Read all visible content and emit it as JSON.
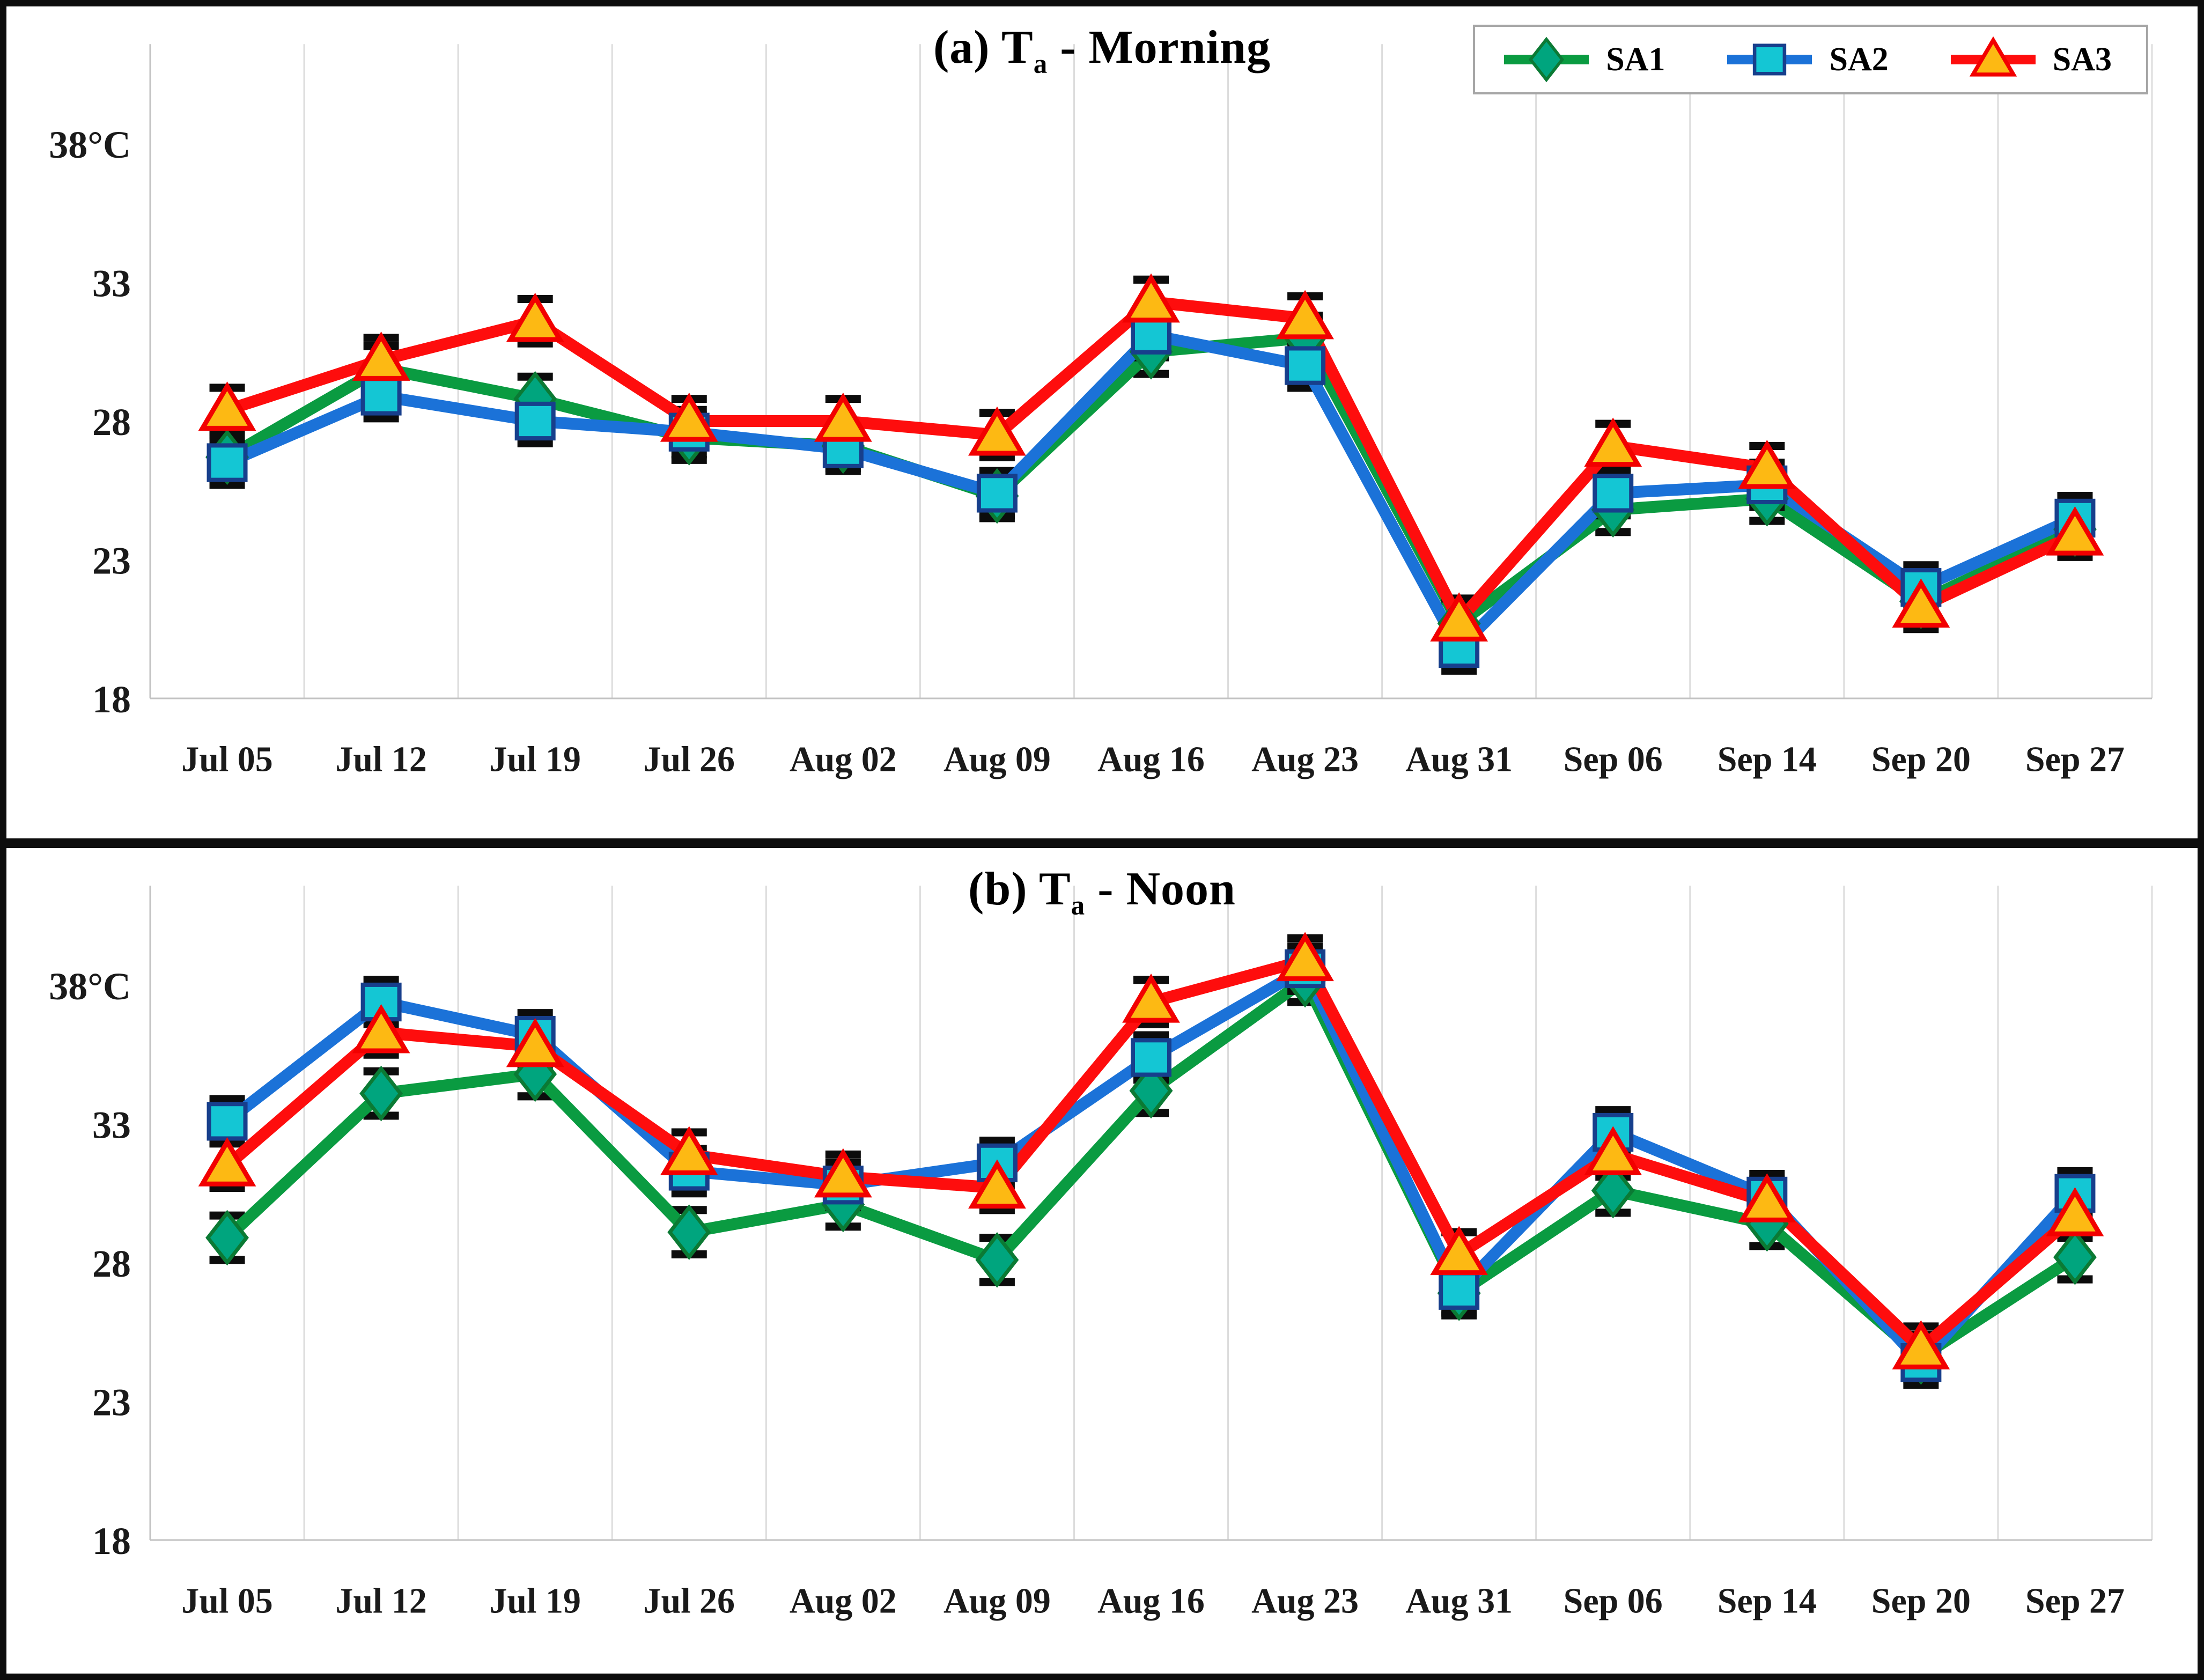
{
  "figure": {
    "panels": [
      {
        "id": "morning",
        "title_prefix": "(a)  T",
        "title_sub": "a",
        "title_rest": " - Morning"
      },
      {
        "id": "noon",
        "title_prefix": "(b)  T",
        "title_sub": "a",
        "title_rest": " - Noon"
      }
    ]
  },
  "legend": {
    "position": "top-right-of-panel-a",
    "items": [
      {
        "label": "SA1",
        "marker": "diamond"
      },
      {
        "label": "SA2",
        "marker": "square"
      },
      {
        "label": "SA3",
        "marker": "triangle"
      }
    ]
  },
  "series_styles": {
    "SA1": {
      "line_color": "#0a9b41",
      "marker": "diamond",
      "marker_fill": "#00a57e",
      "marker_stroke": "#0b7a34"
    },
    "SA2": {
      "line_color": "#1b72d8",
      "marker": "square",
      "marker_fill": "#14c6d4",
      "marker_stroke": "#173f8c"
    },
    "SA3": {
      "line_color": "#fe0d0d",
      "marker": "triangle",
      "marker_fill": "#fdb913",
      "marker_stroke": "#f20000"
    }
  },
  "chart_data": [
    {
      "type": "line",
      "panel": "morning",
      "title": "(a) Ta - Morning",
      "categories": [
        "Jul 05",
        "Jul 12",
        "Jul 19",
        "Jul 26",
        "Aug 02",
        "Aug 09",
        "Aug 16",
        "Aug 23",
        "Aug 31",
        "Sep 06",
        "Sep 14",
        "Sep 20",
        "Sep 27"
      ],
      "series": [
        {
          "name": "SA1",
          "values": [
            26.7,
            29.9,
            28.8,
            27.4,
            27.1,
            25.3,
            30.5,
            31.0,
            20.7,
            24.8,
            25.2,
            21.5,
            24.1
          ]
        },
        {
          "name": "SA2",
          "values": [
            26.5,
            28.9,
            28.0,
            27.6,
            27.0,
            25.4,
            31.1,
            30.0,
            19.8,
            25.4,
            25.7,
            22.0,
            24.5
          ]
        },
        {
          "name": "SA3",
          "values": [
            28.4,
            30.2,
            31.6,
            28.0,
            28.0,
            27.5,
            32.3,
            31.7,
            20.8,
            27.1,
            26.3,
            21.3,
            23.9
          ]
        }
      ],
      "error_bar_half": 0.8,
      "ylabel": "°C",
      "yticks": [
        38,
        33,
        28,
        23,
        18
      ],
      "ytick_labels": [
        "38°C",
        "33",
        "28",
        "23",
        "18"
      ],
      "ylim": [
        18,
        40.5
      ],
      "grid": "vertical-only",
      "legend_position": "top-right"
    },
    {
      "type": "line",
      "panel": "noon",
      "title": "(b) Ta - Noon",
      "categories": [
        "Jul 05",
        "Jul 12",
        "Jul 19",
        "Jul 26",
        "Aug 02",
        "Aug 09",
        "Aug 16",
        "Aug 23",
        "Aug 31",
        "Sep 06",
        "Sep 14",
        "Sep 20",
        "Sep 27"
      ],
      "series": [
        {
          "name": "SA1",
          "values": [
            28.9,
            34.1,
            34.8,
            29.1,
            30.1,
            28.1,
            34.2,
            38.2,
            26.9,
            30.6,
            29.4,
            24.6,
            28.2
          ]
        },
        {
          "name": "SA2",
          "values": [
            33.1,
            37.4,
            36.2,
            31.3,
            30.8,
            31.6,
            35.4,
            38.6,
            27.0,
            32.7,
            30.4,
            24.4,
            30.5
          ]
        },
        {
          "name": "SA3",
          "values": [
            31.5,
            36.3,
            35.8,
            31.9,
            31.1,
            30.7,
            37.4,
            38.9,
            28.3,
            31.9,
            30.2,
            24.9,
            29.7
          ]
        }
      ],
      "error_bar_half": 0.8,
      "ylabel": "°C",
      "yticks": [
        38,
        33,
        28,
        23,
        18
      ],
      "ytick_labels": [
        "38°C",
        "33",
        "28",
        "23",
        "18"
      ],
      "ylim": [
        18,
        40.5
      ],
      "grid": "vertical-only",
      "legend_position": "none"
    }
  ]
}
